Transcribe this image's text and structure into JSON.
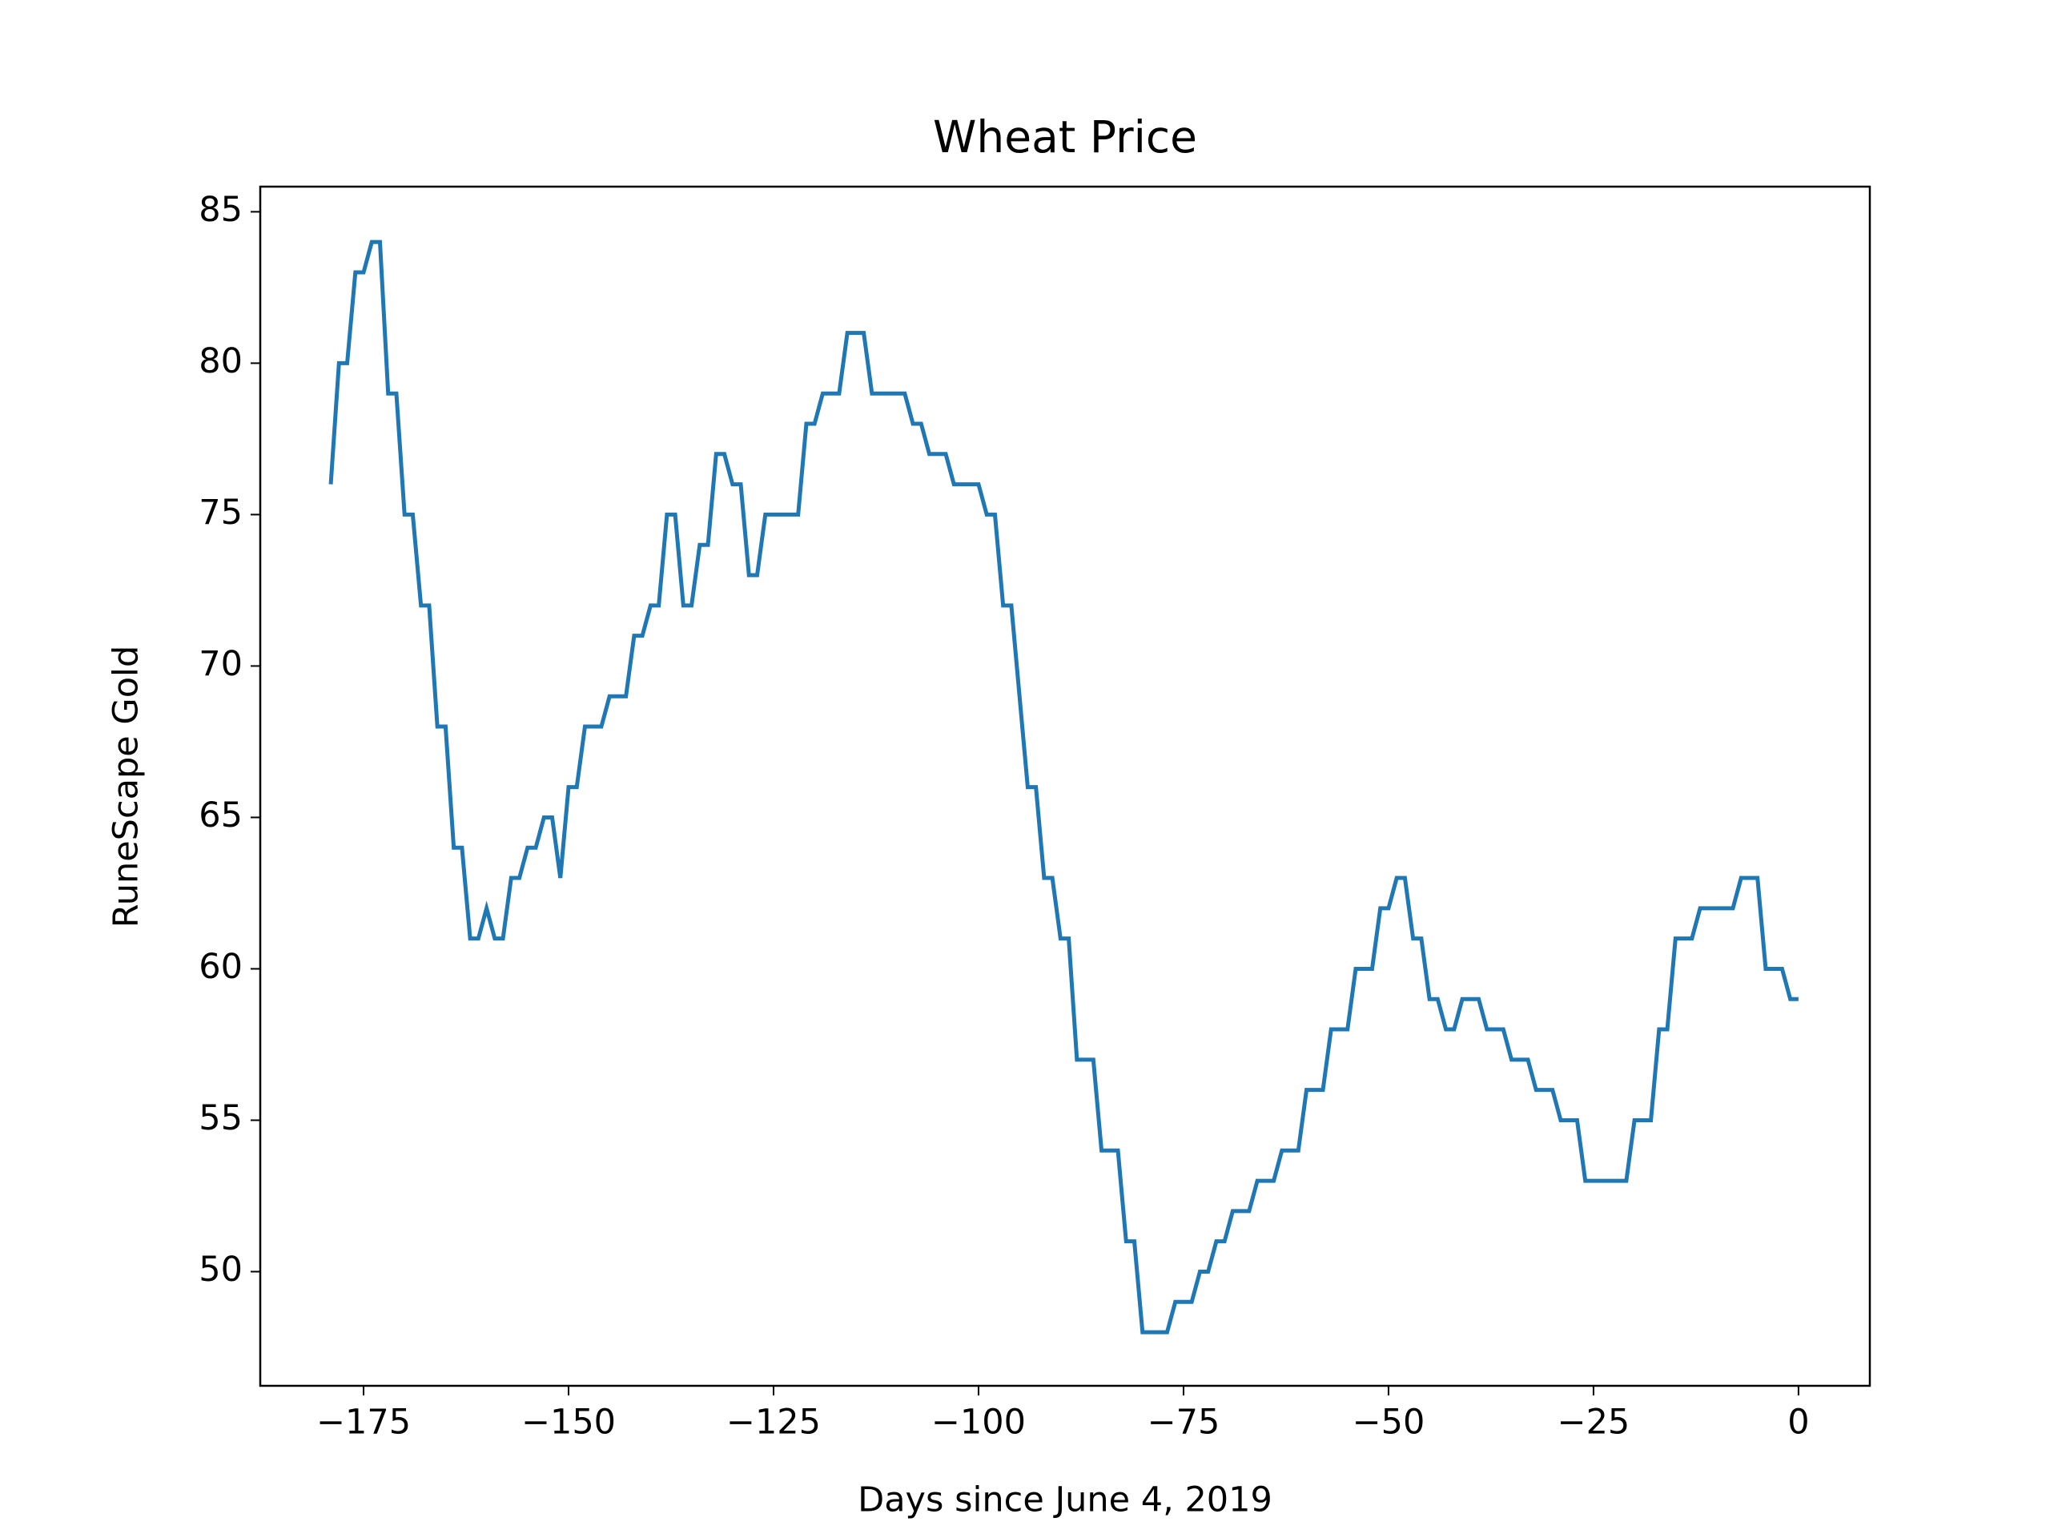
{
  "chart_data": {
    "type": "line",
    "title": "Wheat Price",
    "xlabel": "Days since June 4, 2019",
    "ylabel": "RuneScape Gold",
    "color": "#1f77b4",
    "x": [
      -179,
      -178,
      -177,
      -176,
      -175,
      -174,
      -173,
      -172,
      -171,
      -170,
      -169,
      -168,
      -167,
      -166,
      -165,
      -164,
      -163,
      -162,
      -161,
      -160,
      -159,
      -158,
      -157,
      -156,
      -155,
      -154,
      -153,
      -152,
      -151,
      -150,
      -149,
      -148,
      -147,
      -146,
      -145,
      -144,
      -143,
      -142,
      -141,
      -140,
      -139,
      -138,
      -137,
      -136,
      -135,
      -134,
      -133,
      -132,
      -131,
      -130,
      -129,
      -128,
      -127,
      -126,
      -125,
      -124,
      -123,
      -122,
      -121,
      -120,
      -119,
      -118,
      -117,
      -116,
      -115,
      -114,
      -113,
      -112,
      -111,
      -110,
      -109,
      -108,
      -107,
      -106,
      -105,
      -104,
      -103,
      -102,
      -101,
      -100,
      -99,
      -98,
      -97,
      -96,
      -95,
      -94,
      -93,
      -92,
      -91,
      -90,
      -89,
      -88,
      -87,
      -86,
      -85,
      -84,
      -83,
      -82,
      -81,
      -80,
      -79,
      -78,
      -77,
      -76,
      -75,
      -74,
      -73,
      -72,
      -71,
      -70,
      -69,
      -68,
      -67,
      -66,
      -65,
      -64,
      -63,
      -62,
      -61,
      -60,
      -59,
      -58,
      -57,
      -56,
      -55,
      -54,
      -53,
      -52,
      -51,
      -50,
      -49,
      -48,
      -47,
      -46,
      -45,
      -44,
      -43,
      -42,
      -41,
      -40,
      -39,
      -38,
      -37,
      -36,
      -35,
      -34,
      -33,
      -32,
      -31,
      -30,
      -29,
      -28,
      -27,
      -26,
      -25,
      -24,
      -23,
      -22,
      -21,
      -20,
      -19,
      -18,
      -17,
      -16,
      -15,
      -14,
      -13,
      -12,
      -11,
      -10,
      -9,
      -8,
      -7,
      -6,
      -5,
      -4,
      -3,
      -2,
      -1,
      0
    ],
    "values": [
      76,
      80,
      80,
      83,
      83,
      84,
      84,
      79,
      79,
      75,
      75,
      72,
      72,
      68,
      68,
      64,
      64,
      61,
      61,
      62,
      61,
      61,
      63,
      63,
      64,
      64,
      65,
      65,
      63,
      66,
      66,
      68,
      68,
      68,
      69,
      69,
      69,
      71,
      71,
      72,
      72,
      75,
      75,
      72,
      72,
      74,
      74,
      77,
      77,
      76,
      76,
      73,
      73,
      75,
      75,
      75,
      75,
      75,
      78,
      78,
      79,
      79,
      79,
      81,
      81,
      81,
      79,
      79,
      79,
      79,
      79,
      78,
      78,
      77,
      77,
      77,
      76,
      76,
      76,
      76,
      75,
      75,
      72,
      72,
      69,
      66,
      66,
      63,
      63,
      61,
      61,
      57,
      57,
      57,
      54,
      54,
      54,
      51,
      51,
      48,
      48,
      48,
      48,
      49,
      49,
      49,
      50,
      50,
      51,
      51,
      52,
      52,
      52,
      53,
      53,
      53,
      54,
      54,
      54,
      56,
      56,
      56,
      58,
      58,
      58,
      60,
      60,
      60,
      62,
      62,
      63,
      63,
      61,
      61,
      59,
      59,
      58,
      58,
      59,
      59,
      59,
      58,
      58,
      58,
      57,
      57,
      57,
      56,
      56,
      56,
      55,
      55,
      55,
      53,
      53,
      53,
      53,
      53,
      53,
      55,
      55,
      55,
      58,
      58,
      61,
      61,
      61,
      62,
      62,
      62,
      62,
      62,
      63,
      63,
      63,
      60,
      60,
      60,
      59,
      59
    ],
    "xlim": [
      -187.6,
      8.7
    ],
    "ylim": [
      46.23,
      85.83
    ],
    "xticks": [
      {
        "value": -175,
        "label": "−175"
      },
      {
        "value": -150,
        "label": "−150"
      },
      {
        "value": -125,
        "label": "−125"
      },
      {
        "value": -100,
        "label": "−100"
      },
      {
        "value": -75,
        "label": "−75"
      },
      {
        "value": -50,
        "label": "−50"
      },
      {
        "value": -25,
        "label": "−25"
      },
      0
    ],
    "yticks": [
      50,
      55,
      60,
      65,
      70,
      75,
      80,
      85
    ]
  }
}
